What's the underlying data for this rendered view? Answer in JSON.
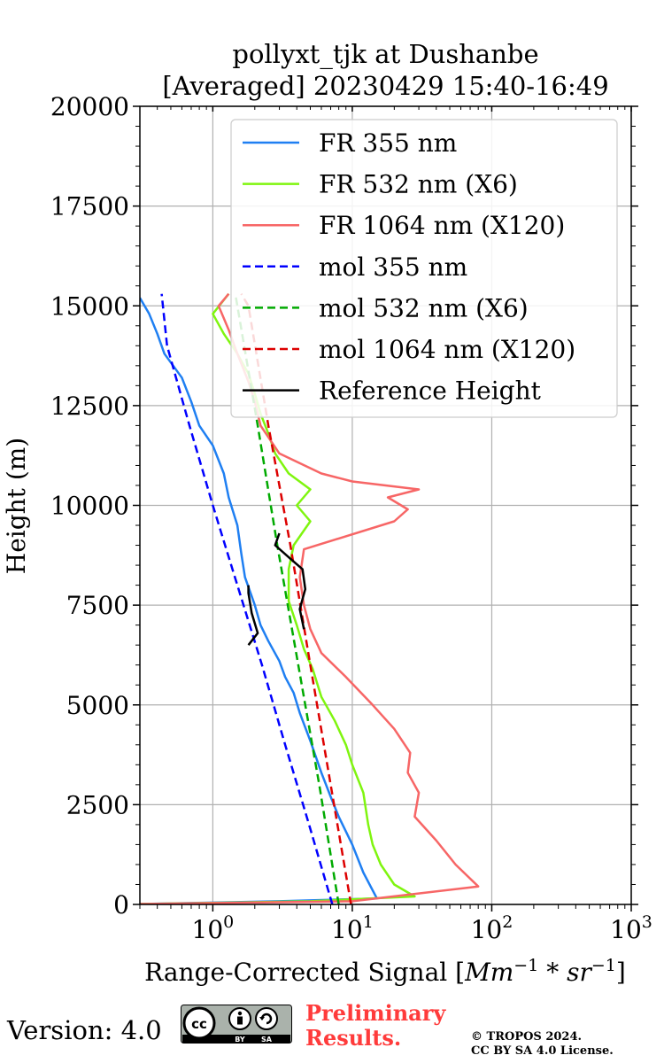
{
  "chart_data": {
    "type": "line",
    "title_line1": "pollyxt_tjk at Dushanbe",
    "title_line2": "[Averaged] 20230429 15:40-16:49",
    "xlabel_main": "Range-Corrected Signal [",
    "xlabel_unit": "Mm",
    "xlabel_sup1": "−1",
    "xlabel_star": " * ",
    "xlabel_sr": "sr",
    "xlabel_sup2": "−1",
    "xlabel_close": "]",
    "ylabel": "Height (m)",
    "xscale": "log",
    "xlim": [
      0.3,
      1000
    ],
    "ylim": [
      0,
      20000
    ],
    "grid": true,
    "legend_position": "top-right",
    "y_ticks": [
      "0",
      "2500",
      "5000",
      "7500",
      "10000",
      "12500",
      "15000",
      "17500",
      "20000"
    ],
    "x_ticks": [
      {
        "base": "10",
        "exp": "0",
        "value": 1
      },
      {
        "base": "10",
        "exp": "1",
        "value": 10
      },
      {
        "base": "10",
        "exp": "2",
        "value": 100
      },
      {
        "base": "10",
        "exp": "3",
        "value": 1000
      }
    ],
    "series": [
      {
        "name": "FR 355 nm",
        "color": "#1f7ff2",
        "style": "solid",
        "points": [
          [
            0.3,
            10
          ],
          [
            3,
            80
          ],
          [
            15,
            150
          ],
          [
            12,
            800
          ],
          [
            10,
            1500
          ],
          [
            8,
            2200
          ],
          [
            7,
            2700
          ],
          [
            6,
            3300
          ],
          [
            5,
            4100
          ],
          [
            4.2,
            4800
          ],
          [
            3.8,
            5300
          ],
          [
            3.3,
            5700
          ],
          [
            3,
            6100
          ],
          [
            2.5,
            6600
          ],
          [
            2.2,
            7000
          ],
          [
            2,
            7500
          ],
          [
            1.7,
            8200
          ],
          [
            1.6,
            8800
          ],
          [
            1.5,
            9500
          ],
          [
            1.3,
            10200
          ],
          [
            1.2,
            10800
          ],
          [
            1.0,
            11500
          ],
          [
            0.8,
            12000
          ],
          [
            0.7,
            12600
          ],
          [
            0.6,
            13200
          ],
          [
            0.45,
            13800
          ],
          [
            0.4,
            14300
          ],
          [
            0.35,
            14800
          ],
          [
            0.3,
            15200
          ]
        ]
      },
      {
        "name": "FR 532 nm (X6)",
        "color": "#7ff50f",
        "style": "solid",
        "points": [
          [
            0.3,
            10
          ],
          [
            5,
            80
          ],
          [
            28,
            200
          ],
          [
            20,
            500
          ],
          [
            16,
            1000
          ],
          [
            14,
            1500
          ],
          [
            13,
            2000
          ],
          [
            12,
            2800
          ],
          [
            10,
            3500
          ],
          [
            9,
            4000
          ],
          [
            7.5,
            4600
          ],
          [
            6,
            5200
          ],
          [
            5.2,
            5900
          ],
          [
            4.5,
            6400
          ],
          [
            4,
            7000
          ],
          [
            3.5,
            7600
          ],
          [
            3.5,
            8400
          ],
          [
            3.8,
            9000
          ],
          [
            5,
            9600
          ],
          [
            4,
            10000
          ],
          [
            5,
            10400
          ],
          [
            3.5,
            10800
          ],
          [
            2.8,
            11300
          ],
          [
            2.5,
            11800
          ],
          [
            2.2,
            12300
          ],
          [
            2,
            12800
          ],
          [
            1.8,
            13300
          ],
          [
            1.5,
            13800
          ],
          [
            1.2,
            14300
          ],
          [
            1,
            14800
          ],
          [
            1.3,
            15300
          ]
        ]
      },
      {
        "name": "FR 1064 nm (X120)",
        "color": "#f76666",
        "style": "solid",
        "points": [
          [
            0.3,
            10
          ],
          [
            10,
            80
          ],
          [
            80,
            450
          ],
          [
            55,
            1000
          ],
          [
            40,
            1600
          ],
          [
            28,
            2200
          ],
          [
            30,
            2800
          ],
          [
            25,
            3300
          ],
          [
            26,
            3800
          ],
          [
            20,
            4400
          ],
          [
            14,
            5000
          ],
          [
            9,
            5700
          ],
          [
            6,
            6300
          ],
          [
            5,
            6900
          ],
          [
            4.5,
            7500
          ],
          [
            4.2,
            8200
          ],
          [
            4.5,
            8900
          ],
          [
            20,
            9600
          ],
          [
            25,
            9900
          ],
          [
            18,
            10200
          ],
          [
            30,
            10400
          ],
          [
            10,
            10600
          ],
          [
            6,
            10800
          ],
          [
            3,
            11300
          ],
          [
            2.2,
            12000
          ],
          [
            2,
            12600
          ],
          [
            1.8,
            13100
          ],
          [
            1.5,
            13800
          ],
          [
            1.3,
            14400
          ],
          [
            1.1,
            15000
          ],
          [
            1.3,
            15300
          ]
        ]
      },
      {
        "name": "mol 355 nm",
        "color": "#0000ff",
        "style": "dashed",
        "points": [
          [
            7.2,
            0
          ],
          [
            4.9,
            2000
          ],
          [
            3.3,
            4000
          ],
          [
            2.25,
            6000
          ],
          [
            1.5,
            8000
          ],
          [
            1.0,
            10000
          ],
          [
            0.68,
            12000
          ],
          [
            0.47,
            14000
          ],
          [
            0.43,
            15300
          ]
        ]
      },
      {
        "name": "mol 532 nm (X6)",
        "color": "#00aa00",
        "style": "dashed",
        "points": [
          [
            8,
            0
          ],
          [
            5.8,
            3000
          ],
          [
            4.1,
            6000
          ],
          [
            2.9,
            9000
          ],
          [
            2.1,
            12000
          ],
          [
            1.5,
            15000
          ],
          [
            1.45,
            15300
          ]
        ]
      },
      {
        "name": "mol 1064 nm (X120)",
        "color": "#dd0000",
        "style": "dashed",
        "points": [
          [
            9.8,
            0
          ],
          [
            7,
            3000
          ],
          [
            5,
            6000
          ],
          [
            3.6,
            9000
          ],
          [
            2.5,
            12000
          ],
          [
            1.8,
            15000
          ],
          [
            1.6,
            15300
          ]
        ]
      },
      {
        "name": "Reference Height",
        "color": "#000000",
        "style": "solid",
        "segments": [
          [
            [
              1.8,
              6500
            ],
            [
              2.1,
              6800
            ],
            [
              1.9,
              7300
            ],
            [
              1.8,
              7800
            ],
            [
              1.8,
              8000
            ]
          ],
          [
            [
              4.5,
              6900
            ],
            [
              4.2,
              7400
            ],
            [
              4.6,
              7900
            ],
            [
              4.4,
              8400
            ],
            [
              3.5,
              8700
            ],
            [
              2.8,
              9000
            ],
            [
              3,
              9300
            ]
          ]
        ]
      }
    ]
  }
}
